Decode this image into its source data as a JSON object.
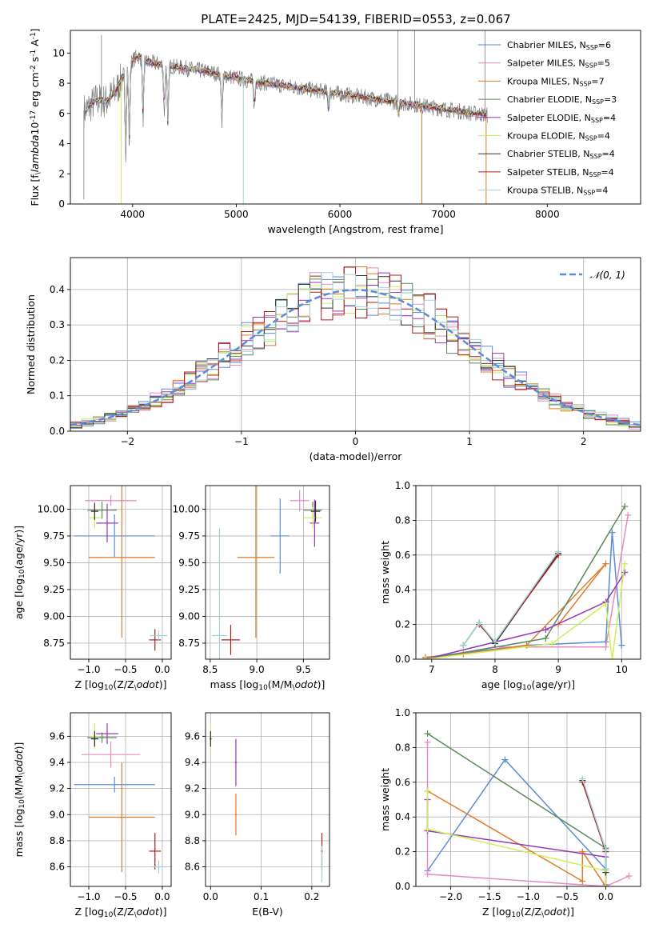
{
  "suptitle": "PLATE=2425, MJD=54139, FIBERID=0553, z=0.067",
  "colors": {
    "chabrier_miles": "#5b8bd8",
    "salpeter_miles": "#e58bbf",
    "kroupa_miles": "#e07a2a",
    "chabrier_elodie": "#5a8a5a",
    "salpeter_elodie": "#9b35b8",
    "kroupa_elodie": "#cdef5a",
    "chabrier_stelib": "#333333",
    "salpeter_stelib": "#b01c1c",
    "kroupa_stelib": "#9fd4d4",
    "data": "#808080",
    "normal": "#5b8bd8"
  },
  "chart_data": [
    {
      "id": "spectrum",
      "type": "line",
      "title": "PLATE=2425, MJD=54139, FIBERID=0553, z=0.067",
      "xlabel": "wavelength [Angstrom, rest frame]",
      "ylabel": "Flux [f$_\\lambda$10$^{-17}$ erg cm$^{-2}$ s$^{-1}$ A$^{-1}$]",
      "xlim": [
        3400,
        8900
      ],
      "ylim": [
        0,
        11.5
      ],
      "xticks": [
        "4000",
        "5000",
        "6000",
        "7000",
        "8000"
      ],
      "yticks": [
        "0",
        "2",
        "4",
        "6",
        "8",
        "10"
      ],
      "legend": "top-right",
      "series": [
        {
          "name": "Chabrier MILES, N$_{SSP}$=6",
          "label_main": "Chabrier MILES, N",
          "label_sub": "SSP",
          "label_tail": "=6",
          "color": "chabrier_miles"
        },
        {
          "name": "Salpeter MILES, N$_{SSP}$=5",
          "label_main": "Salpeter MILES, N",
          "label_sub": "SSP",
          "label_tail": "=5",
          "color": "salpeter_miles"
        },
        {
          "name": "Kroupa MILES, N$_{SSP}$=7",
          "label_main": "Kroupa MILES, N",
          "label_sub": "SSP",
          "label_tail": "=7",
          "color": "kroupa_miles"
        },
        {
          "name": "Chabrier ELODIE, N$_{SSP}$=3",
          "label_main": "Chabrier ELODIE, N",
          "label_sub": "SSP",
          "label_tail": "=3",
          "color": "chabrier_elodie"
        },
        {
          "name": "Salpeter ELODIE, N$_{SSP}$=4",
          "label_main": "Salpeter ELODIE, N",
          "label_sub": "SSP",
          "label_tail": "=4",
          "color": "salpeter_elodie"
        },
        {
          "name": "Kroupa ELODIE, N$_{SSP}$=4",
          "label_main": "Kroupa ELODIE, N",
          "label_sub": "SSP",
          "label_tail": "=4",
          "color": "kroupa_elodie"
        },
        {
          "name": "Chabrier STELIB, N$_{SSP}$=4",
          "label_main": "Chabrier STELIB, N",
          "label_sub": "SSP",
          "label_tail": "=4",
          "color": "chabrier_stelib"
        },
        {
          "name": "Salpeter STELIB, N$_{SSP}$=4",
          "label_main": "Salpeter STELIB, N",
          "label_sub": "SSP",
          "label_tail": "=4",
          "color": "salpeter_stelib"
        },
        {
          "name": "Kroupa STELIB, N$_{SSP}$=4",
          "label_main": "Kroupa STELIB, N",
          "label_sub": "SSP",
          "label_tail": "=4",
          "color": "kroupa_stelib"
        }
      ],
      "continuum": [
        [
          3550,
          6.2
        ],
        [
          3650,
          6.9
        ],
        [
          3750,
          6.8
        ],
        [
          3850,
          7.6
        ],
        [
          3950,
          9.2
        ],
        [
          4050,
          9.8
        ],
        [
          4150,
          9.4
        ],
        [
          4300,
          9.2
        ],
        [
          4500,
          9.0
        ],
        [
          4700,
          8.8
        ],
        [
          4900,
          8.5
        ],
        [
          5100,
          8.2
        ],
        [
          5300,
          8.0
        ],
        [
          5500,
          7.8
        ],
        [
          5700,
          7.6
        ],
        [
          5900,
          7.4
        ],
        [
          6100,
          7.2
        ],
        [
          6300,
          7.0
        ],
        [
          6500,
          6.8
        ],
        [
          6700,
          6.6
        ],
        [
          6900,
          6.4
        ],
        [
          7100,
          6.2
        ],
        [
          7300,
          6.0
        ],
        [
          7420,
          5.9
        ]
      ],
      "absorption": [
        [
          3934,
          3.0
        ],
        [
          3968,
          3.6
        ],
        [
          4102,
          5.6
        ],
        [
          4305,
          6.0
        ],
        [
          4340,
          4.9
        ],
        [
          4861,
          5.4
        ],
        [
          5175,
          6.3
        ],
        [
          5890,
          6.2
        ],
        [
          6563,
          5.8
        ]
      ],
      "model_spikes": [
        [
          3890,
          0.0
        ],
        [
          5068,
          0.0
        ],
        [
          6790,
          0.0
        ],
        [
          7410,
          0.0
        ]
      ],
      "data_spikes": [
        [
          3530,
          0.3
        ],
        [
          3700,
          11.2
        ],
        [
          6560,
          12.0
        ],
        [
          6720,
          11.5
        ],
        [
          7400,
          12.0
        ]
      ]
    },
    {
      "id": "residuals",
      "type": "step",
      "xlabel": "(data-model)/error",
      "ylabel": "Normed distribution",
      "xlim": [
        -2.5,
        2.5
      ],
      "ylim": [
        0,
        0.49
      ],
      "xticks": [
        "−2",
        "−1",
        "0",
        "1",
        "2"
      ],
      "yticks": [
        "0.0",
        "0.1",
        "0.2",
        "0.3",
        "0.4"
      ],
      "legend": "top-right",
      "normal_label": "𝒩(0, 1)",
      "normal_mu": 0,
      "normal_sigma": 1,
      "bin_width": 0.1
    },
    {
      "id": "age_vs_Z",
      "type": "errorbar",
      "xlabel": "Z [log$_{10}$(Z/Z$_\\odot$)]",
      "ylabel": "age  [log$_{10}$(age/yr)]",
      "xlim": [
        -1.25,
        0.12
      ],
      "ylim": [
        8.6,
        10.22
      ],
      "xticks": [
        "−1.0",
        "−0.5",
        "0.0"
      ],
      "yticks": [
        "8.75",
        "9.00",
        "9.25",
        "9.50",
        "9.75",
        "10.00"
      ],
      "points": [
        {
          "c": "chabrier_miles",
          "x": -0.65,
          "y": 9.75,
          "xerr": 0.55,
          "yerr": 0.2
        },
        {
          "c": "salpeter_miles",
          "x": -0.7,
          "y": 10.08,
          "xerr": 0.35,
          "yerr": 0.05
        },
        {
          "c": "kroupa_miles",
          "x": -0.55,
          "y": 9.55,
          "xerr": 0.45,
          "yerr": 0.75
        },
        {
          "c": "chabrier_elodie",
          "x": -0.82,
          "y": 9.99,
          "xerr": 0.2,
          "yerr": 0.08
        },
        {
          "c": "salpeter_elodie",
          "x": -0.75,
          "y": 9.87,
          "xerr": 0.15,
          "yerr": 0.18
        },
        {
          "c": "kroupa_elodie",
          "x": -0.92,
          "y": 9.92,
          "xerr": 0.08,
          "yerr": 0.1
        },
        {
          "c": "chabrier_stelib",
          "x": -0.92,
          "y": 9.98,
          "xerr": 0.05,
          "yerr": 0.08
        },
        {
          "c": "salpeter_stelib",
          "x": -0.1,
          "y": 8.78,
          "xerr": 0.08,
          "yerr": 0.1
        },
        {
          "c": "kroupa_stelib",
          "x": -0.05,
          "y": 8.82,
          "xerr": 0.12,
          "yerr": 0.05
        }
      ]
    },
    {
      "id": "age_vs_mass",
      "type": "errorbar",
      "xlabel": "mass [log$_{10}$(M/M$_\\odot$)]",
      "ylabel": "",
      "xlim": [
        8.45,
        9.78
      ],
      "ylim": [
        8.6,
        10.22
      ],
      "xticks": [
        "8.5",
        "9.0",
        "9.5"
      ],
      "yticks": [
        "8.75",
        "9.00",
        "9.25",
        "9.50",
        "9.75",
        "10.00"
      ],
      "points": [
        {
          "c": "chabrier_miles",
          "x": 9.25,
          "y": 9.75,
          "xerr": 0.1,
          "yerr": 0.35
        },
        {
          "c": "salpeter_miles",
          "x": 9.46,
          "y": 10.08,
          "xerr": 0.1,
          "yerr": 0.1
        },
        {
          "c": "kroupa_miles",
          "x": 8.99,
          "y": 9.55,
          "xerr": 0.2,
          "yerr": 0.75
        },
        {
          "c": "chabrier_elodie",
          "x": 9.6,
          "y": 9.99,
          "xerr": 0.1,
          "yerr": 0.08
        },
        {
          "c": "salpeter_elodie",
          "x": 9.62,
          "y": 9.87,
          "xerr": 0.05,
          "yerr": 0.22
        },
        {
          "c": "kroupa_elodie",
          "x": 9.6,
          "y": 9.92,
          "xerr": 0.1,
          "yerr": 0.1
        },
        {
          "c": "chabrier_stelib",
          "x": 9.63,
          "y": 9.98,
          "xerr": 0.05,
          "yerr": 0.1
        },
        {
          "c": "salpeter_stelib",
          "x": 8.72,
          "y": 8.78,
          "xerr": 0.1,
          "yerr": 0.14
        },
        {
          "c": "kroupa_stelib",
          "x": 8.6,
          "y": 8.82,
          "xerr": 0.08,
          "yerr": 1.0
        }
      ]
    },
    {
      "id": "mass_weight_vs_age",
      "type": "line",
      "xlabel": "age  [log$_{10}$(age/yr)]",
      "ylabel": "mass weight",
      "xlim": [
        6.75,
        10.3
      ],
      "ylim": [
        0,
        1.0
      ],
      "xticks": [
        "7",
        "8",
        "9",
        "10"
      ],
      "yticks": [
        "0.0",
        "0.2",
        "0.4",
        "0.6",
        "0.8",
        "1.0"
      ],
      "series": [
        {
          "c": "chabrier_miles",
          "x": [
            6.9,
            8.5,
            9.75,
            9.85,
            10.0
          ],
          "y": [
            0.01,
            0.08,
            0.1,
            0.73,
            0.08
          ]
        },
        {
          "c": "salpeter_miles",
          "x": [
            6.9,
            8.0,
            9.75,
            10.1
          ],
          "y": [
            0.0,
            0.07,
            0.07,
            0.83
          ]
        },
        {
          "c": "kroupa_miles",
          "x": [
            6.9,
            7.5,
            8.5,
            9.75,
            9.0
          ],
          "y": [
            0.01,
            0.03,
            0.08,
            0.55,
            0.2
          ]
        },
        {
          "c": "chabrier_elodie",
          "x": [
            6.9,
            8.8,
            10.05
          ],
          "y": [
            0.0,
            0.12,
            0.88
          ]
        },
        {
          "c": "salpeter_elodie",
          "x": [
            6.9,
            8.8,
            9.75,
            10.05
          ],
          "y": [
            0.0,
            0.17,
            0.33,
            0.5
          ]
        },
        {
          "c": "kroupa_elodie",
          "x": [
            6.9,
            8.9,
            9.75,
            9.85,
            10.05
          ],
          "y": [
            0.0,
            0.09,
            0.32,
            0.0,
            0.55
          ]
        },
        {
          "c": "chabrier_stelib",
          "x": [
            7.5,
            7.75,
            8.0,
            9.0
          ],
          "y": [
            0.08,
            0.21,
            0.09,
            0.61
          ]
        },
        {
          "c": "salpeter_stelib",
          "x": [
            7.75,
            8.0,
            9.0
          ],
          "y": [
            0.2,
            0.1,
            0.6
          ]
        },
        {
          "c": "kroupa_stelib",
          "x": [
            7.5,
            7.75,
            8.0,
            9.0
          ],
          "y": [
            0.08,
            0.21,
            0.1,
            0.62
          ]
        }
      ]
    },
    {
      "id": "mass_vs_Z",
      "type": "errorbar",
      "xlabel": "Z [log$_{10}$(Z/Z$_\\odot$)]",
      "ylabel": "mass [log$_{10}$(M/M$_\\odot$)]",
      "xlim": [
        -1.25,
        0.12
      ],
      "ylim": [
        8.45,
        9.78
      ],
      "xticks": [
        "−1.0",
        "−0.5",
        "0.0"
      ],
      "yticks": [
        "8.6",
        "8.8",
        "9.0",
        "9.2",
        "9.4",
        "9.6"
      ],
      "points": [
        {
          "c": "chabrier_miles",
          "x": -0.65,
          "y": 9.23,
          "xerr": 0.55,
          "yerr": 0.06
        },
        {
          "c": "salpeter_miles",
          "x": -0.7,
          "y": 9.46,
          "xerr": 0.4,
          "yerr": 0.1
        },
        {
          "c": "kroupa_miles",
          "x": -0.55,
          "y": 8.98,
          "xerr": 0.45,
          "yerr": 0.42
        },
        {
          "c": "chabrier_elodie",
          "x": -0.82,
          "y": 9.59,
          "xerr": 0.2,
          "yerr": 0.04
        },
        {
          "c": "salpeter_elodie",
          "x": -0.75,
          "y": 9.62,
          "xerr": 0.15,
          "yerr": 0.08
        },
        {
          "c": "kroupa_elodie",
          "x": -0.92,
          "y": 9.6,
          "xerr": 0.05,
          "yerr": 0.1
        },
        {
          "c": "chabrier_stelib",
          "x": -0.92,
          "y": 9.58,
          "xerr": 0.05,
          "yerr": 0.06
        },
        {
          "c": "salpeter_stelib",
          "x": -0.1,
          "y": 8.72,
          "xerr": 0.08,
          "yerr": 0.14
        },
        {
          "c": "kroupa_stelib",
          "x": -0.05,
          "y": 8.6,
          "xerr": 0.1,
          "yerr": 0.05
        }
      ]
    },
    {
      "id": "mass_vs_ebv",
      "type": "errorbar",
      "xlabel": "E(B-V)",
      "ylabel": "",
      "xlim": [
        -0.01,
        0.235
      ],
      "ylim": [
        8.45,
        9.78
      ],
      "xticks": [
        "0.0",
        "0.1",
        "0.2"
      ],
      "yticks": [
        "8.6",
        "8.8",
        "9.0",
        "9.2",
        "9.4",
        "9.6"
      ],
      "points": [
        {
          "c": "kroupa_elodie",
          "x": 0.0,
          "y": 9.6,
          "xerr": 0.002,
          "yerr": 0.1
        },
        {
          "c": "chabrier_stelib",
          "x": 0.0,
          "y": 9.58,
          "xerr": 0.002,
          "yerr": 0.06
        },
        {
          "c": "salpeter_elodie",
          "x": 0.05,
          "y": 9.4,
          "xerr": 0.002,
          "yerr": 0.18
        },
        {
          "c": "kroupa_miles",
          "x": 0.05,
          "y": 9.0,
          "xerr": 0.002,
          "yerr": 0.16
        },
        {
          "c": "salpeter_stelib",
          "x": 0.22,
          "y": 8.72,
          "xerr": 0.002,
          "yerr": 0.14
        },
        {
          "c": "kroupa_stelib",
          "x": 0.22,
          "y": 8.62,
          "xerr": 0.002,
          "yerr": 0.14
        }
      ]
    },
    {
      "id": "mass_weight_vs_Z",
      "type": "line",
      "xlabel": "Z [log$_{10}$(Z/Z$_\\odot$)]",
      "ylabel": "mass weight",
      "xlim": [
        -2.45,
        0.45
      ],
      "ylim": [
        0,
        1.0
      ],
      "xticks": [
        "−2.0",
        "−1.5",
        "−1.0",
        "−0.5",
        "0.0"
      ],
      "yticks": [
        "0.0",
        "0.2",
        "0.4",
        "0.6",
        "0.8",
        "1.0"
      ],
      "series": [
        {
          "c": "chabrier_miles",
          "x": [
            -2.3,
            -1.3,
            0.0,
            0.0
          ],
          "y": [
            0.09,
            0.73,
            0.1,
            0.01
          ]
        },
        {
          "c": "salpeter_miles",
          "x": [
            -2.3,
            -2.3,
            0.0,
            0.3
          ],
          "y": [
            0.83,
            0.07,
            0.0,
            0.06
          ]
        },
        {
          "c": "kroupa_miles",
          "x": [
            -2.3,
            -0.3,
            -0.3,
            0.0
          ],
          "y": [
            0.55,
            0.03,
            0.2,
            0.0
          ]
        },
        {
          "c": "chabrier_elodie",
          "x": [
            -2.3,
            0.0,
            0.0
          ],
          "y": [
            0.88,
            0.22,
            0.0
          ]
        },
        {
          "c": "salpeter_elodie",
          "x": [
            -2.3,
            -2.3,
            0.0,
            0.0
          ],
          "y": [
            0.5,
            0.32,
            0.17,
            0.0
          ]
        },
        {
          "c": "kroupa_elodie",
          "x": [
            -2.3,
            -2.3,
            0.0,
            0.0
          ],
          "y": [
            0.55,
            0.33,
            0.09,
            0.0
          ]
        },
        {
          "c": "chabrier_stelib",
          "x": [
            -0.3,
            0.0,
            0.0
          ],
          "y": [
            0.61,
            0.21,
            0.08
          ]
        },
        {
          "c": "salpeter_stelib",
          "x": [
            -0.3,
            0.0
          ],
          "y": [
            0.6,
            0.2
          ]
        },
        {
          "c": "kroupa_stelib",
          "x": [
            -0.3,
            0.0,
            0.0
          ],
          "y": [
            0.62,
            0.21,
            0.1
          ]
        }
      ]
    }
  ]
}
